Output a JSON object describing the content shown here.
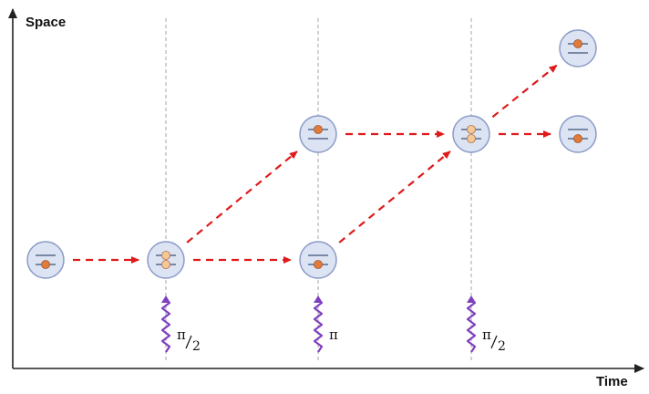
{
  "axes": {
    "y_label": "Space",
    "x_label": "Time"
  },
  "pulses": [
    {
      "label": "π",
      "fraction": true,
      "denominator": "2"
    },
    {
      "label": "π",
      "fraction": false
    },
    {
      "label": "π",
      "fraction": true,
      "denominator": "2"
    }
  ],
  "atoms": [
    {
      "id": "a1",
      "state": "ground"
    },
    {
      "id": "a2",
      "state": "superposition"
    },
    {
      "id": "a3",
      "state": "excited"
    },
    {
      "id": "a4",
      "state": "ground"
    },
    {
      "id": "a5",
      "state": "superposition"
    },
    {
      "id": "a6",
      "state": "excited"
    },
    {
      "id": "a7",
      "state": "ground"
    }
  ],
  "paths": [
    {
      "from": "a1",
      "to": "a2"
    },
    {
      "from": "a2",
      "to": "a3"
    },
    {
      "from": "a2",
      "to": "a4"
    },
    {
      "from": "a3",
      "to": "a5"
    },
    {
      "from": "a4",
      "to": "a5"
    },
    {
      "from": "a5",
      "to": "a6"
    },
    {
      "from": "a5",
      "to": "a7"
    }
  ],
  "colors": {
    "axis": "#222222",
    "guide": "#b5b5b5",
    "arrow": "#e0191b",
    "atom_fill": "#dce3f2",
    "atom_stroke": "#8a9bc7",
    "level_line": "#5a6a8f",
    "dot_filled": "#e07b3a",
    "dot_light": "#f5c89a",
    "pulse": "#7f3fbf"
  }
}
